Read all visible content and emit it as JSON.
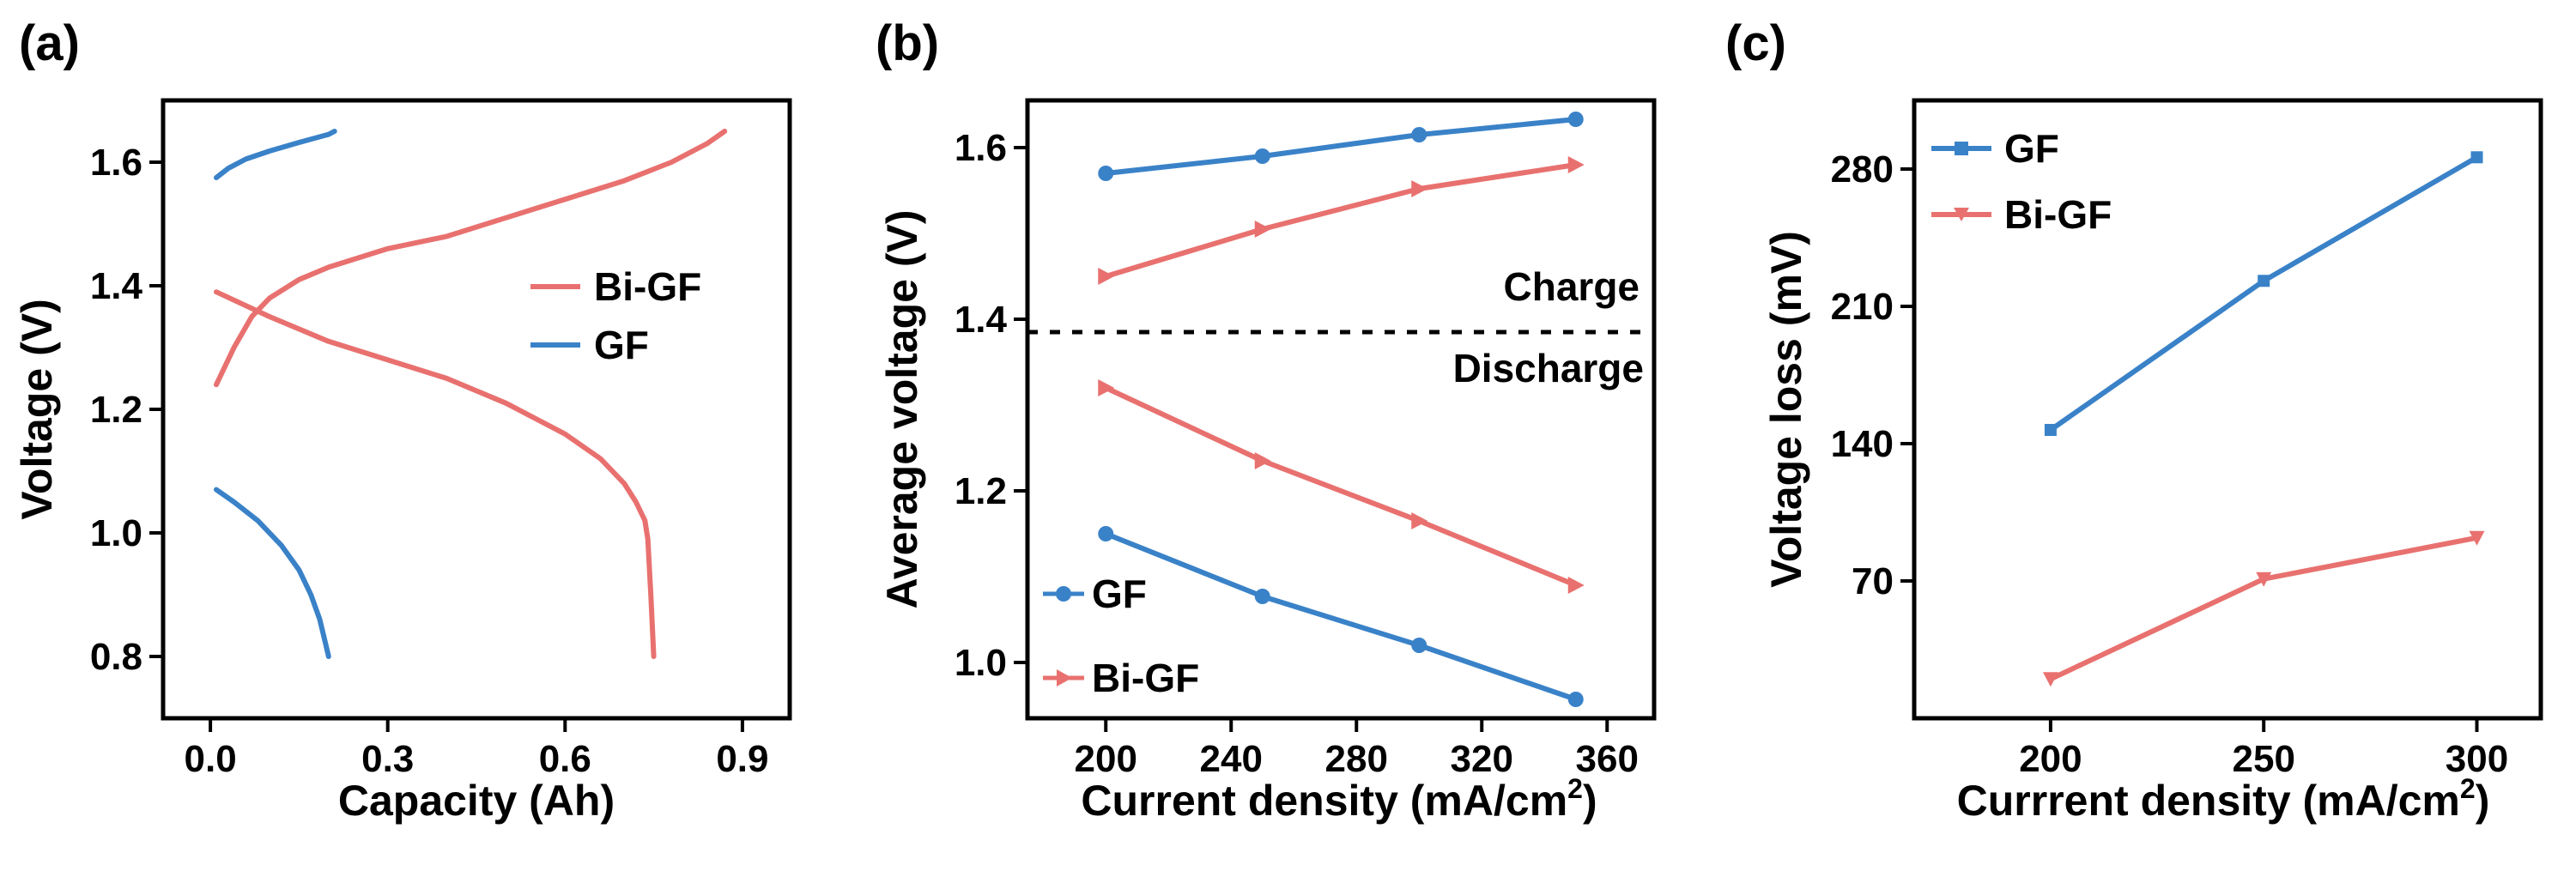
{
  "figure": {
    "colors": {
      "GF": "#3a82c8",
      "Bi-GF": "#e8716f",
      "axis": "#000000"
    }
  },
  "chart_data": [
    {
      "panel": "(a)",
      "type": "line",
      "xlabel": "Capacity (Ah)",
      "ylabel": "Voltage (V)",
      "xlim": [
        -0.08,
        0.98
      ],
      "ylim": [
        0.7,
        1.7
      ],
      "xticks": [
        "0.0",
        "0.3",
        "0.6",
        "0.9"
      ],
      "yticks": [
        "0.8",
        "1.0",
        "1.2",
        "1.4",
        "1.6"
      ],
      "legend": [
        "Bi-GF",
        "GF"
      ],
      "legend_position": "right",
      "series": [
        {
          "name": "Bi-GF",
          "label": "Bi-GF charge",
          "x": [
            0.01,
            0.04,
            0.07,
            0.1,
            0.15,
            0.2,
            0.3,
            0.4,
            0.5,
            0.6,
            0.7,
            0.78,
            0.84,
            0.87
          ],
          "y": [
            1.24,
            1.3,
            1.35,
            1.38,
            1.41,
            1.43,
            1.46,
            1.48,
            1.51,
            1.54,
            1.57,
            1.6,
            1.63,
            1.65
          ]
        },
        {
          "name": "Bi-GF",
          "label": "Bi-GF discharge",
          "x": [
            0.01,
            0.1,
            0.2,
            0.3,
            0.4,
            0.5,
            0.6,
            0.66,
            0.7,
            0.72,
            0.735,
            0.74,
            0.745,
            0.75
          ],
          "y": [
            1.39,
            1.35,
            1.31,
            1.28,
            1.25,
            1.21,
            1.16,
            1.12,
            1.08,
            1.05,
            1.02,
            0.99,
            0.9,
            0.8
          ]
        },
        {
          "name": "GF",
          "label": "GF charge",
          "x": [
            0.01,
            0.03,
            0.06,
            0.1,
            0.15,
            0.2,
            0.21
          ],
          "y": [
            1.575,
            1.59,
            1.605,
            1.618,
            1.632,
            1.645,
            1.65
          ]
        },
        {
          "name": "GF",
          "label": "GF discharge",
          "x": [
            0.01,
            0.04,
            0.08,
            0.12,
            0.15,
            0.17,
            0.185,
            0.195,
            0.2
          ],
          "y": [
            1.07,
            1.05,
            1.02,
            0.98,
            0.94,
            0.9,
            0.86,
            0.82,
            0.8
          ]
        }
      ]
    },
    {
      "panel": "(b)",
      "type": "line",
      "xlabel": "Current density (mA/cm",
      "xlabel_sup": "2",
      "xlabel_end": ")",
      "ylabel": "Average voltage (V)",
      "xlim": [
        175,
        375
      ],
      "ylim": [
        0.935,
        1.655
      ],
      "xticks": [
        "200",
        "240",
        "280",
        "320",
        "360"
      ],
      "yticks": [
        "1.0",
        "1.2",
        "1.4",
        "1.6"
      ],
      "reference_line": 1.385,
      "annotations": [
        "Charge",
        "Discharge"
      ],
      "legend": [
        "GF",
        "Bi-GF"
      ],
      "legend_position": "bottom-left",
      "series": [
        {
          "name": "GF",
          "label": "GF charge",
          "marker": "circle",
          "x": [
            200,
            250,
            300,
            350
          ],
          "y": [
            1.57,
            1.59,
            1.615,
            1.633
          ]
        },
        {
          "name": "Bi-GF",
          "label": "Bi-GF charge",
          "marker": "triangle-right",
          "x": [
            200,
            250,
            300,
            350
          ],
          "y": [
            1.45,
            1.505,
            1.552,
            1.58
          ]
        },
        {
          "name": "Bi-GF",
          "label": "Bi-GF discharge",
          "marker": "triangle-right",
          "x": [
            200,
            250,
            300,
            350
          ],
          "y": [
            1.32,
            1.235,
            1.165,
            1.09
          ]
        },
        {
          "name": "GF",
          "label": "GF discharge",
          "marker": "circle",
          "x": [
            200,
            250,
            300,
            350
          ],
          "y": [
            1.15,
            1.077,
            1.02,
            0.957
          ]
        }
      ]
    },
    {
      "panel": "(c)",
      "type": "line",
      "xlabel": "Currrent density (mA/cm",
      "xlabel_sup": "2",
      "xlabel_end": ")",
      "ylabel": "Voltage loss (mV)",
      "xlim": [
        168,
        315
      ],
      "ylim": [
        0,
        315
      ],
      "xticks": [
        "200",
        "250",
        "300"
      ],
      "yticks": [
        "70",
        "140",
        "210",
        "280"
      ],
      "legend": [
        "GF",
        "Bi-GF"
      ],
      "legend_position": "top-left",
      "series": [
        {
          "name": "GF",
          "marker": "square",
          "x": [
            200,
            250,
            300
          ],
          "y": [
            147,
            223,
            286
          ]
        },
        {
          "name": "Bi-GF",
          "marker": "triangle-down",
          "x": [
            200,
            250,
            300
          ],
          "y": [
            20,
            71,
            92
          ]
        }
      ]
    }
  ]
}
